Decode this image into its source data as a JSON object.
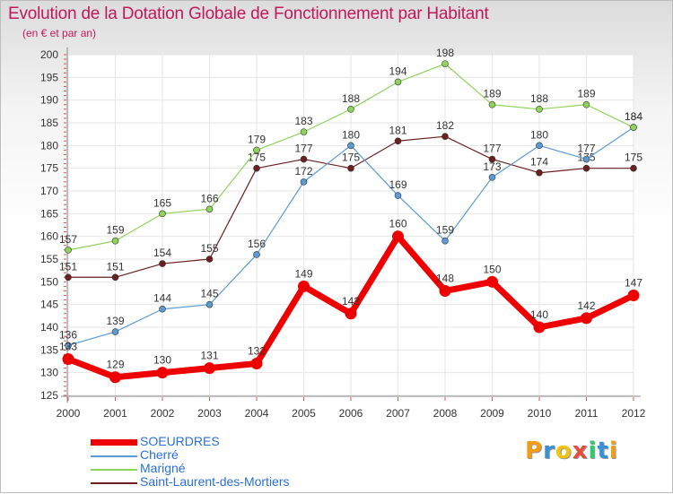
{
  "header": {
    "title": "Evolution de la Dotation Globale de Fonctionnement par Habitant",
    "subtitle": "(en € et par an)"
  },
  "logo": {
    "letters": [
      "P",
      "r",
      "o",
      "x",
      "i",
      "t",
      "i"
    ]
  },
  "chart_data": {
    "type": "line",
    "x": [
      "2000",
      "2001",
      "2002",
      "2003",
      "2004",
      "2005",
      "2006",
      "2007",
      "2008",
      "2009",
      "2010",
      "2011",
      "2012"
    ],
    "ylim": [
      125,
      200
    ],
    "yticks": [
      125,
      130,
      135,
      140,
      145,
      150,
      155,
      160,
      165,
      170,
      175,
      180,
      185,
      190,
      195,
      200
    ],
    "grid": true,
    "legend_position": "bottom-left",
    "series": [
      {
        "name": "Saint-Laurent-des-Mortiers",
        "color": "#6b1f1f",
        "values": [
          151,
          151,
          154,
          155,
          175,
          177,
          175,
          181,
          182,
          177,
          174,
          175,
          175
        ]
      },
      {
        "name": "Cherré",
        "color": "#5a9bd5",
        "values": [
          136,
          139,
          144,
          145,
          156,
          172,
          180,
          169,
          159,
          173,
          180,
          177,
          184
        ]
      },
      {
        "name": "Marigné",
        "color": "#8ed45a",
        "values": [
          157,
          159,
          165,
          166,
          179,
          183,
          188,
          194,
          198,
          189,
          188,
          189,
          184
        ]
      },
      {
        "name": "SOEURDRES",
        "color": "#ee0000",
        "values": [
          133,
          129,
          130,
          131,
          132,
          149,
          143,
          160,
          148,
          150,
          140,
          142,
          147
        ]
      }
    ],
    "legend": [
      "SOEURDRES",
      "Cherré",
      "Marigné",
      "Saint-Laurent-des-Mortiers"
    ]
  }
}
